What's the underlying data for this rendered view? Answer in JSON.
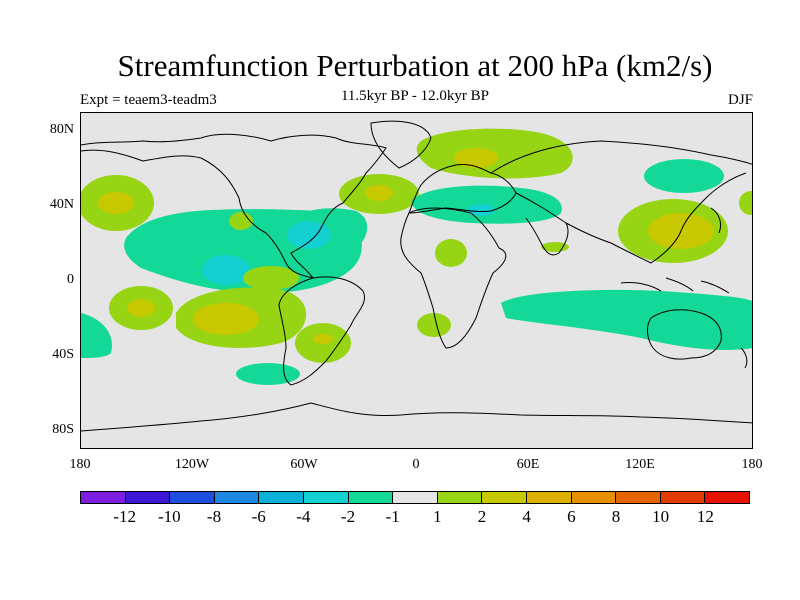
{
  "title": "Streamfunction Perturbation at 200 hPa (km2/s)",
  "experiment": "Expt = teaem3-teadm3",
  "period": "11.5kyr BP - 12.0kyr BP",
  "season": "DJF",
  "map": {
    "projection": "cylindrical equidistant",
    "lat_range": [
      -90,
      90
    ],
    "lon_range": [
      -180,
      180
    ],
    "y_ticks": [
      "80N",
      "40N",
      "0",
      "40S",
      "80S"
    ],
    "x_ticks": [
      "180",
      "120W",
      "60W",
      "0",
      "60E",
      "120E",
      "180"
    ],
    "neutral_color": "#e5e5e5",
    "coastline_color": "#000000"
  },
  "colorbar": {
    "colors": [
      "#7c1ee0",
      "#3d18d4",
      "#1e4ee0",
      "#1e88e0",
      "#0ab0d8",
      "#14d0d0",
      "#14d898",
      "#e5e5e5",
      "#96d414",
      "#c8c800",
      "#dcb000",
      "#e49000",
      "#e46400",
      "#e43c00",
      "#e41400"
    ],
    "labels": [
      "-12",
      "-10",
      "-8",
      "-6",
      "-4",
      "-2",
      "-1",
      "1",
      "2",
      "4",
      "6",
      "8",
      "10",
      "12"
    ]
  },
  "anomaly_regions": [
    {
      "name": "tropical-east-pacific-negative",
      "level": "-2 to -1",
      "fill": "#14d898"
    },
    {
      "name": "caribbean-core-negative",
      "level": "-4 to -2",
      "fill": "#14d0d0"
    },
    {
      "name": "north-atlantic-positive",
      "level": "1 to 2",
      "fill": "#96d414"
    },
    {
      "name": "europe-asia-negative",
      "level": "-2 to -1",
      "fill": "#14d898"
    },
    {
      "name": "east-asia-positive",
      "level": "2 to 4",
      "fill": "#c8c800"
    },
    {
      "name": "south-pacific-positive",
      "level": "2 to 4",
      "fill": "#c8c800"
    },
    {
      "name": "indian-ocean-negative",
      "level": "-2 to -1",
      "fill": "#14d898"
    }
  ]
}
